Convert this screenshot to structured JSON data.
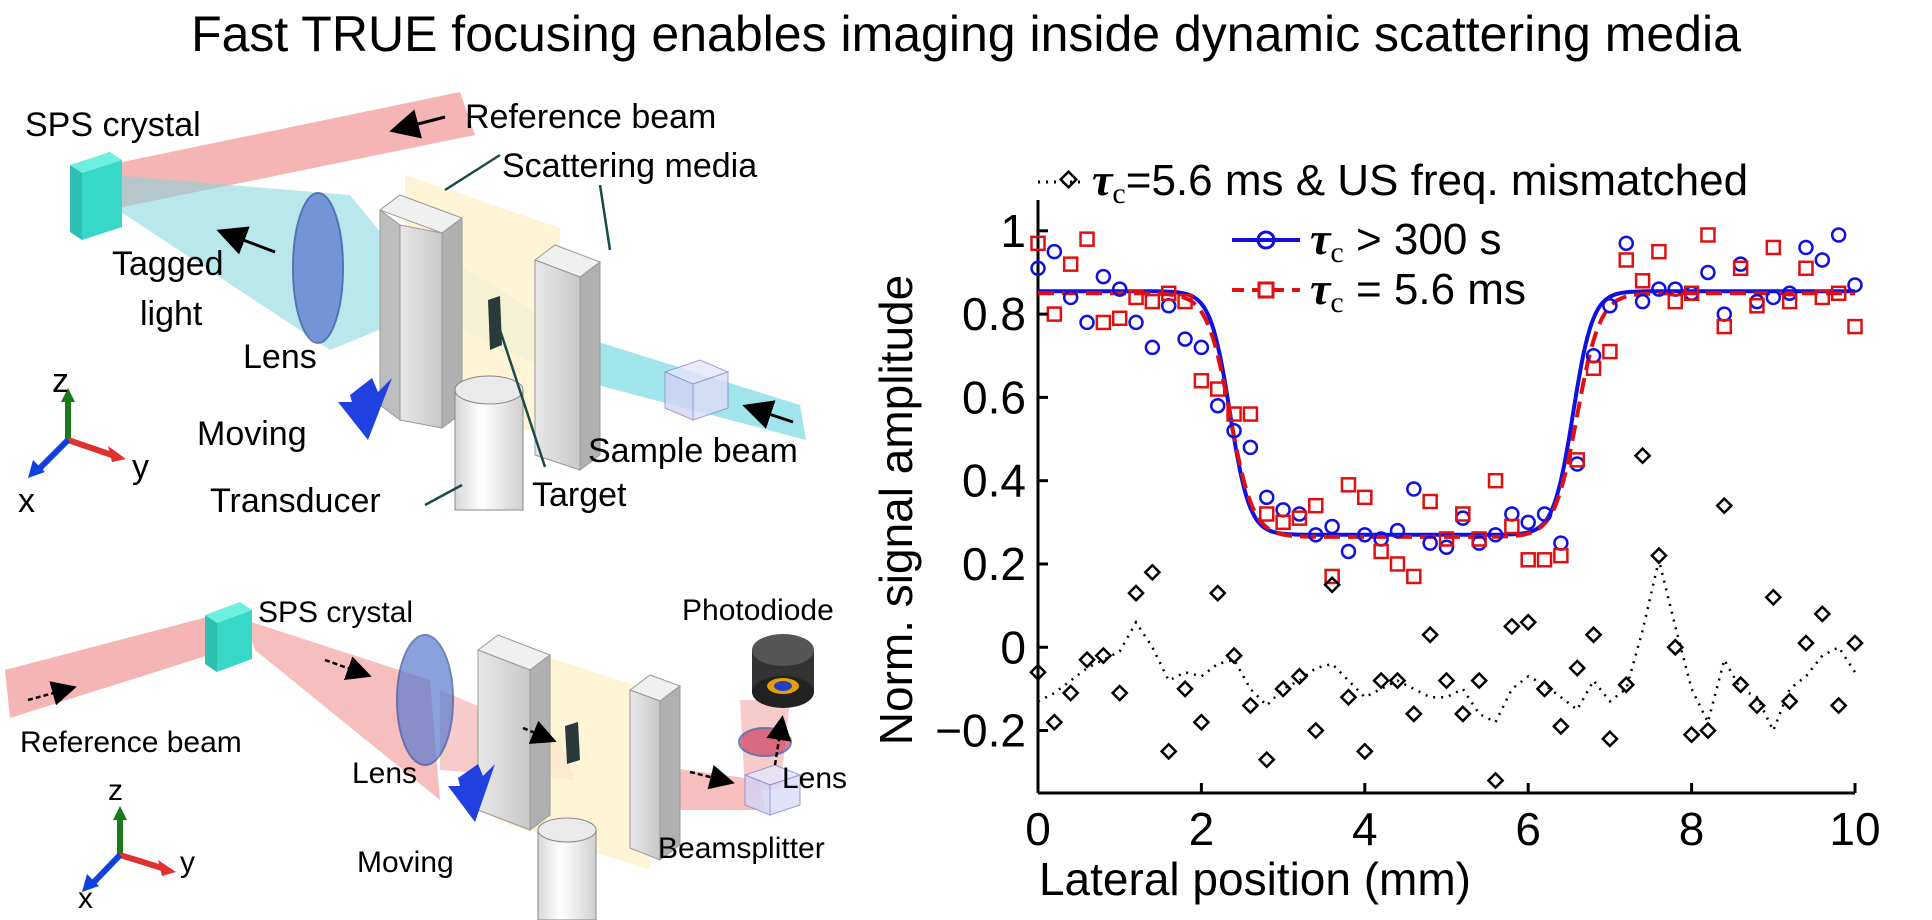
{
  "title": "Fast TRUE focusing enables imaging inside dynamic scattering media",
  "top_diagram": {
    "labels": {
      "sps_crystal": "SPS crystal",
      "reference_beam": "Reference beam",
      "scattering_media": "Scattering media",
      "tagged_light_1": "Tagged",
      "tagged_light_2": "light",
      "lens": "Lens",
      "moving": "Moving",
      "sample_beam": "Sample beam",
      "transducer": "Transducer",
      "target": "Target",
      "axis_z": "z",
      "axis_y": "y",
      "axis_x": "x"
    }
  },
  "bottom_diagram": {
    "labels": {
      "sps_crystal": "SPS crystal",
      "photodiode": "Photodiode",
      "reference_beam": "Reference beam",
      "lens_left": "Lens",
      "lens_right": "Lens",
      "moving": "Moving",
      "beamsplitter": "Beamsplitter",
      "axis_z": "z",
      "axis_y": "y",
      "axis_x": "x"
    }
  },
  "colors": {
    "blue_series": "#1010e0",
    "red_series": "#e01010",
    "black_series": "#000000",
    "beam_red": "#f4a0a0",
    "beam_cyan": "#8fe0e8",
    "crystal": "#38d8c8"
  },
  "chart_data": {
    "type": "scatter",
    "xlabel": "Lateral position (mm)",
    "ylabel": "Norm. signal amplitude",
    "xlim": [
      0,
      10
    ],
    "ylim": [
      -0.35,
      1.05
    ],
    "xticks": [
      "0",
      "2",
      "4",
      "6",
      "8",
      "10"
    ],
    "yticks": [
      "−0.2",
      "0",
      "0.2",
      "0.4",
      "0.6",
      "0.8",
      "1"
    ],
    "ytick_values": [
      -0.2,
      0,
      0.2,
      0.4,
      0.6,
      0.8,
      1.0
    ],
    "xtick_values": [
      0,
      2,
      4,
      6,
      8,
      10
    ],
    "legend": {
      "black": {
        "tau": "τ",
        "sub": "c",
        "text": "=5.6 ms & US freq. mismatched"
      },
      "blue": {
        "tau": "τ",
        "sub": "c",
        "text": " > 300 s"
      },
      "red": {
        "tau": "τ",
        "sub": "c",
        "text": " = 5.6 ms"
      }
    },
    "series": [
      {
        "key": "blue",
        "marker": "circle",
        "x": [
          0,
          0.2,
          0.4,
          0.6,
          0.8,
          1.0,
          1.2,
          1.4,
          1.6,
          1.8,
          2.0,
          2.2,
          2.4,
          2.6,
          2.8,
          3.0,
          3.2,
          3.4,
          3.6,
          3.8,
          4.0,
          4.2,
          4.4,
          4.6,
          4.8,
          5.0,
          5.2,
          5.4,
          5.6,
          5.8,
          6.0,
          6.2,
          6.4,
          6.6,
          6.8,
          7.0,
          7.2,
          7.4,
          7.6,
          7.8,
          8.0,
          8.2,
          8.4,
          8.6,
          8.8,
          9.0,
          9.2,
          9.4,
          9.6,
          9.8,
          10.0
        ],
        "y": [
          0.91,
          0.95,
          0.84,
          0.78,
          0.89,
          0.86,
          0.78,
          0.72,
          0.82,
          0.74,
          0.72,
          0.58,
          0.52,
          0.48,
          0.36,
          0.33,
          0.32,
          0.27,
          0.29,
          0.23,
          0.27,
          0.26,
          0.28,
          0.38,
          0.25,
          0.24,
          0.31,
          0.25,
          0.27,
          0.32,
          0.3,
          0.32,
          0.25,
          0.44,
          0.7,
          0.82,
          0.97,
          0.83,
          0.86,
          0.86,
          0.85,
          0.9,
          0.8,
          0.92,
          0.83,
          0.84,
          0.85,
          0.96,
          0.93,
          0.99,
          0.87
        ]
      },
      {
        "key": "red",
        "marker": "square",
        "x": [
          0,
          0.2,
          0.4,
          0.6,
          0.8,
          1.0,
          1.2,
          1.4,
          1.6,
          1.8,
          2.0,
          2.2,
          2.4,
          2.6,
          2.8,
          3.0,
          3.2,
          3.4,
          3.6,
          3.8,
          4.0,
          4.2,
          4.4,
          4.6,
          4.8,
          5.0,
          5.2,
          5.4,
          5.6,
          5.8,
          6.0,
          6.2,
          6.4,
          6.6,
          6.8,
          7.0,
          7.2,
          7.4,
          7.6,
          7.8,
          8.0,
          8.2,
          8.4,
          8.6,
          8.8,
          9.0,
          9.2,
          9.4,
          9.6,
          9.8,
          10.0
        ],
        "y": [
          0.97,
          0.8,
          0.92,
          0.98,
          0.78,
          0.79,
          0.84,
          0.83,
          0.85,
          0.83,
          0.64,
          0.62,
          0.56,
          0.56,
          0.32,
          0.3,
          0.31,
          0.34,
          0.17,
          0.39,
          0.36,
          0.23,
          0.2,
          0.17,
          0.35,
          0.26,
          0.32,
          0.26,
          0.4,
          0.29,
          0.21,
          0.21,
          0.22,
          0.45,
          0.67,
          0.71,
          0.93,
          0.88,
          0.95,
          0.83,
          0.85,
          0.99,
          0.77,
          0.91,
          0.82,
          0.96,
          0.83,
          0.91,
          0.84,
          0.85,
          0.77
        ]
      },
      {
        "key": "black",
        "marker": "diamond",
        "x": [
          0,
          0.2,
          0.4,
          0.6,
          0.8,
          1.0,
          1.2,
          1.4,
          1.6,
          1.8,
          2.0,
          2.2,
          2.4,
          2.6,
          2.8,
          3.0,
          3.2,
          3.4,
          3.6,
          3.8,
          4.0,
          4.2,
          4.4,
          4.6,
          4.8,
          5.0,
          5.2,
          5.4,
          5.6,
          5.8,
          6.0,
          6.2,
          6.4,
          6.6,
          6.8,
          7.0,
          7.2,
          7.4,
          7.6,
          7.8,
          8.0,
          8.2,
          8.4,
          8.6,
          8.8,
          9.0,
          9.2,
          9.4,
          9.6,
          9.8,
          10.0
        ],
        "y": [
          -0.06,
          -0.18,
          -0.11,
          -0.03,
          -0.02,
          -0.11,
          0.13,
          0.18,
          -0.25,
          -0.1,
          -0.18,
          0.13,
          -0.02,
          -0.14,
          -0.27,
          -0.1,
          -0.07,
          -0.2,
          0.15,
          -0.12,
          -0.25,
          -0.08,
          -0.08,
          -0.16,
          0.03,
          -0.08,
          -0.16,
          -0.08,
          -0.32,
          0.05,
          0.06,
          -0.1,
          -0.19,
          -0.05,
          0.03,
          -0.22,
          -0.09,
          0.46,
          0.22,
          0.0,
          -0.21,
          -0.2,
          0.34,
          -0.09,
          -0.14,
          0.12,
          -0.13,
          0.01,
          0.08,
          -0.14,
          0.01
        ]
      }
    ],
    "fits": [
      {
        "key": "blue",
        "style": "solid",
        "low": 0.27,
        "high": 0.855,
        "edge1": 2.35,
        "edge2": 6.55,
        "width": 0.12
      },
      {
        "key": "red",
        "style": "dashed",
        "low": 0.265,
        "high": 0.85,
        "edge1": 2.35,
        "edge2": 6.6,
        "width": 0.14
      }
    ],
    "black_trend_y": [
      -0.13,
      -0.11,
      -0.08,
      -0.05,
      -0.03,
      -0.01,
      0.06,
      0.0,
      -0.08,
      -0.06,
      -0.07,
      -0.04,
      -0.03,
      -0.1,
      -0.14,
      -0.1,
      -0.08,
      -0.05,
      -0.04,
      -0.08,
      -0.12,
      -0.1,
      -0.08,
      -0.1,
      -0.12,
      -0.12,
      -0.1,
      -0.16,
      -0.18,
      -0.1,
      -0.07,
      -0.09,
      -0.12,
      -0.15,
      -0.08,
      -0.13,
      -0.1,
      0.04,
      0.21,
      0.05,
      -0.1,
      -0.18,
      -0.03,
      -0.1,
      -0.12,
      -0.2,
      -0.1,
      -0.07,
      -0.02,
      0.0,
      -0.06
    ]
  }
}
